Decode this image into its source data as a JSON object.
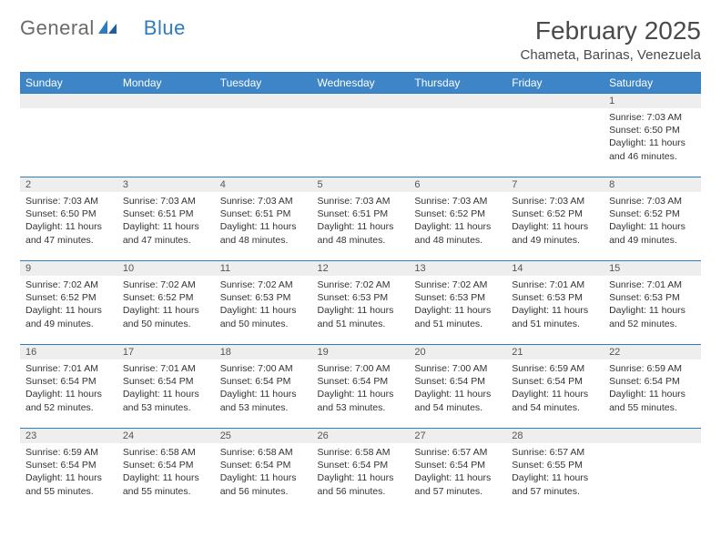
{
  "logo": {
    "text1": "General",
    "text2": "Blue"
  },
  "title": "February 2025",
  "location": "Chameta, Barinas, Venezuela",
  "colors": {
    "header_bg": "#3d85c6",
    "header_text": "#ffffff",
    "border": "#2f7bbf",
    "daynum_bg": "#eeeeee",
    "page_bg": "#ffffff",
    "text": "#333333",
    "logo_gray": "#6a6a6a",
    "logo_blue": "#2f7bbf"
  },
  "dayHeaders": [
    "Sunday",
    "Monday",
    "Tuesday",
    "Wednesday",
    "Thursday",
    "Friday",
    "Saturday"
  ],
  "weeks": [
    [
      null,
      null,
      null,
      null,
      null,
      null,
      {
        "n": "1",
        "sr": "7:03 AM",
        "ss": "6:50 PM",
        "dl": "11 hours and 46 minutes."
      }
    ],
    [
      {
        "n": "2",
        "sr": "7:03 AM",
        "ss": "6:50 PM",
        "dl": "11 hours and 47 minutes."
      },
      {
        "n": "3",
        "sr": "7:03 AM",
        "ss": "6:51 PM",
        "dl": "11 hours and 47 minutes."
      },
      {
        "n": "4",
        "sr": "7:03 AM",
        "ss": "6:51 PM",
        "dl": "11 hours and 48 minutes."
      },
      {
        "n": "5",
        "sr": "7:03 AM",
        "ss": "6:51 PM",
        "dl": "11 hours and 48 minutes."
      },
      {
        "n": "6",
        "sr": "7:03 AM",
        "ss": "6:52 PM",
        "dl": "11 hours and 48 minutes."
      },
      {
        "n": "7",
        "sr": "7:03 AM",
        "ss": "6:52 PM",
        "dl": "11 hours and 49 minutes."
      },
      {
        "n": "8",
        "sr": "7:03 AM",
        "ss": "6:52 PM",
        "dl": "11 hours and 49 minutes."
      }
    ],
    [
      {
        "n": "9",
        "sr": "7:02 AM",
        "ss": "6:52 PM",
        "dl": "11 hours and 49 minutes."
      },
      {
        "n": "10",
        "sr": "7:02 AM",
        "ss": "6:52 PM",
        "dl": "11 hours and 50 minutes."
      },
      {
        "n": "11",
        "sr": "7:02 AM",
        "ss": "6:53 PM",
        "dl": "11 hours and 50 minutes."
      },
      {
        "n": "12",
        "sr": "7:02 AM",
        "ss": "6:53 PM",
        "dl": "11 hours and 51 minutes."
      },
      {
        "n": "13",
        "sr": "7:02 AM",
        "ss": "6:53 PM",
        "dl": "11 hours and 51 minutes."
      },
      {
        "n": "14",
        "sr": "7:01 AM",
        "ss": "6:53 PM",
        "dl": "11 hours and 51 minutes."
      },
      {
        "n": "15",
        "sr": "7:01 AM",
        "ss": "6:53 PM",
        "dl": "11 hours and 52 minutes."
      }
    ],
    [
      {
        "n": "16",
        "sr": "7:01 AM",
        "ss": "6:54 PM",
        "dl": "11 hours and 52 minutes."
      },
      {
        "n": "17",
        "sr": "7:01 AM",
        "ss": "6:54 PM",
        "dl": "11 hours and 53 minutes."
      },
      {
        "n": "18",
        "sr": "7:00 AM",
        "ss": "6:54 PM",
        "dl": "11 hours and 53 minutes."
      },
      {
        "n": "19",
        "sr": "7:00 AM",
        "ss": "6:54 PM",
        "dl": "11 hours and 53 minutes."
      },
      {
        "n": "20",
        "sr": "7:00 AM",
        "ss": "6:54 PM",
        "dl": "11 hours and 54 minutes."
      },
      {
        "n": "21",
        "sr": "6:59 AM",
        "ss": "6:54 PM",
        "dl": "11 hours and 54 minutes."
      },
      {
        "n": "22",
        "sr": "6:59 AM",
        "ss": "6:54 PM",
        "dl": "11 hours and 55 minutes."
      }
    ],
    [
      {
        "n": "23",
        "sr": "6:59 AM",
        "ss": "6:54 PM",
        "dl": "11 hours and 55 minutes."
      },
      {
        "n": "24",
        "sr": "6:58 AM",
        "ss": "6:54 PM",
        "dl": "11 hours and 55 minutes."
      },
      {
        "n": "25",
        "sr": "6:58 AM",
        "ss": "6:54 PM",
        "dl": "11 hours and 56 minutes."
      },
      {
        "n": "26",
        "sr": "6:58 AM",
        "ss": "6:54 PM",
        "dl": "11 hours and 56 minutes."
      },
      {
        "n": "27",
        "sr": "6:57 AM",
        "ss": "6:54 PM",
        "dl": "11 hours and 57 minutes."
      },
      {
        "n": "28",
        "sr": "6:57 AM",
        "ss": "6:55 PM",
        "dl": "11 hours and 57 minutes."
      },
      null
    ]
  ],
  "labels": {
    "sunrise": "Sunrise:",
    "sunset": "Sunset:",
    "daylight": "Daylight:"
  }
}
